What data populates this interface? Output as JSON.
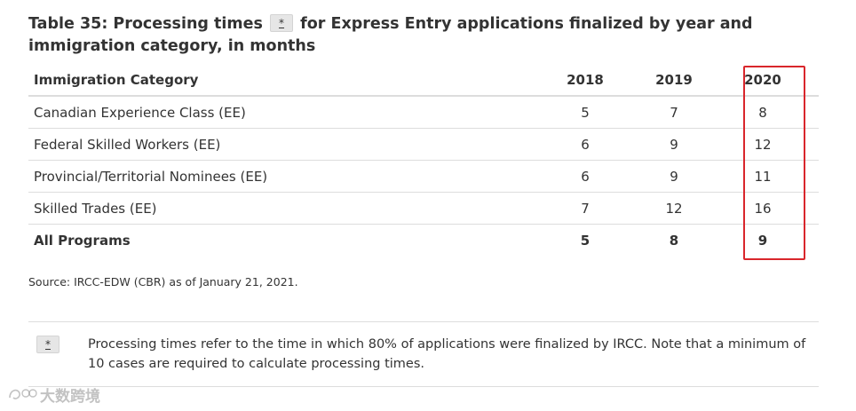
{
  "caption": {
    "before": "Table 35: Processing times",
    "marker": "*",
    "after": "for Express Entry applications finalized by year and immigration category, in months"
  },
  "table": {
    "headers": [
      "Immigration Category",
      "2018",
      "2019",
      "2020"
    ],
    "rows": [
      {
        "category": "Canadian Experience Class (EE)",
        "y2018": "5",
        "y2019": "7",
        "y2020": "8"
      },
      {
        "category": "Federal Skilled Workers (EE)",
        "y2018": "6",
        "y2019": "9",
        "y2020": "12"
      },
      {
        "category": "Provincial/Territorial Nominees (EE)",
        "y2018": "6",
        "y2019": "9",
        "y2020": "11"
      },
      {
        "category": "Skilled Trades (EE)",
        "y2018": "7",
        "y2019": "12",
        "y2020": "16"
      }
    ],
    "total": {
      "category": "All Programs",
      "y2018": "5",
      "y2019": "8",
      "y2020": "9"
    }
  },
  "source": "Source: IRCC-EDW (CBR) as of January 21, 2021.",
  "footnote": {
    "marker": "*",
    "text": "Processing times refer to the time in which 80% of applications were finalized by IRCC. Note that a minimum of 10 cases are required to calculate processing times."
  },
  "watermark": {
    "text": "大数跨境"
  },
  "colors": {
    "highlight": "#d9262c",
    "rule": "#dddddd",
    "text": "#333333"
  }
}
